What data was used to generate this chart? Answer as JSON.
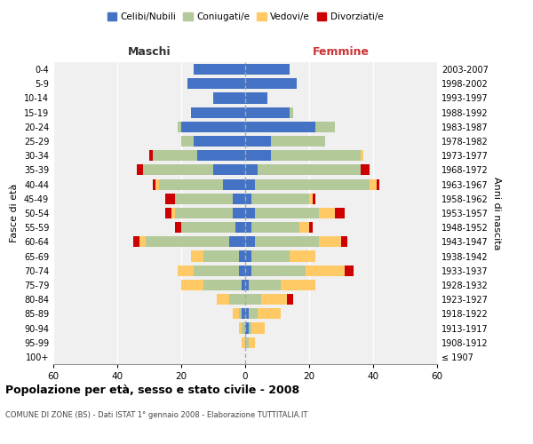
{
  "age_groups": [
    "100+",
    "95-99",
    "90-94",
    "85-89",
    "80-84",
    "75-79",
    "70-74",
    "65-69",
    "60-64",
    "55-59",
    "50-54",
    "45-49",
    "40-44",
    "35-39",
    "30-34",
    "25-29",
    "20-24",
    "15-19",
    "10-14",
    "5-9",
    "0-4"
  ],
  "birth_years": [
    "≤ 1907",
    "1908-1912",
    "1913-1917",
    "1918-1922",
    "1923-1927",
    "1928-1932",
    "1933-1937",
    "1938-1942",
    "1943-1947",
    "1948-1952",
    "1953-1957",
    "1958-1962",
    "1963-1967",
    "1968-1972",
    "1973-1977",
    "1978-1982",
    "1983-1987",
    "1988-1992",
    "1993-1997",
    "1998-2002",
    "2003-2007"
  ],
  "males": {
    "celibi": [
      0,
      0,
      0,
      1,
      0,
      1,
      2,
      2,
      5,
      3,
      4,
      4,
      7,
      10,
      15,
      16,
      20,
      17,
      10,
      18,
      16
    ],
    "coniugati": [
      0,
      0,
      1,
      1,
      5,
      12,
      14,
      11,
      26,
      17,
      18,
      18,
      20,
      22,
      14,
      4,
      1,
      0,
      0,
      0,
      0
    ],
    "vedovi": [
      0,
      1,
      1,
      2,
      4,
      7,
      5,
      4,
      2,
      0,
      1,
      0,
      1,
      0,
      0,
      0,
      0,
      0,
      0,
      0,
      0
    ],
    "divorziati": [
      0,
      0,
      0,
      0,
      0,
      0,
      0,
      0,
      2,
      2,
      2,
      3,
      1,
      2,
      1,
      0,
      0,
      0,
      0,
      0,
      0
    ]
  },
  "females": {
    "nubili": [
      0,
      0,
      1,
      1,
      0,
      1,
      2,
      2,
      3,
      2,
      3,
      2,
      3,
      4,
      8,
      8,
      22,
      14,
      7,
      16,
      14
    ],
    "coniugate": [
      0,
      1,
      1,
      3,
      5,
      10,
      17,
      12,
      20,
      15,
      20,
      18,
      36,
      32,
      28,
      17,
      6,
      1,
      0,
      0,
      0
    ],
    "vedove": [
      0,
      2,
      4,
      7,
      8,
      11,
      12,
      8,
      7,
      3,
      5,
      1,
      2,
      0,
      1,
      0,
      0,
      0,
      0,
      0,
      0
    ],
    "divorziate": [
      0,
      0,
      0,
      0,
      2,
      0,
      3,
      0,
      2,
      1,
      3,
      1,
      1,
      3,
      0,
      0,
      0,
      0,
      0,
      0,
      0
    ]
  },
  "colors": {
    "celibi": "#4472c4",
    "coniugati": "#b3c99a",
    "vedovi": "#ffc966",
    "divorziati": "#cc0000"
  },
  "title": "Popolazione per età, sesso e stato civile - 2008",
  "subtitle": "COMUNE DI ZONE (BS) - Dati ISTAT 1° gennaio 2008 - Elaborazione TUTTITALIA.IT",
  "xlabel_left": "Maschi",
  "xlabel_right": "Femmine",
  "ylabel_left": "Fasce di età",
  "ylabel_right": "Anni di nascita",
  "xlim": 60,
  "legend_labels": [
    "Celibi/Nubili",
    "Coniugati/e",
    "Vedovi/e",
    "Divorziati/e"
  ],
  "bg_color": "#ffffff",
  "plot_bg": "#f0f0f0",
  "grid_color": "#cccccc"
}
